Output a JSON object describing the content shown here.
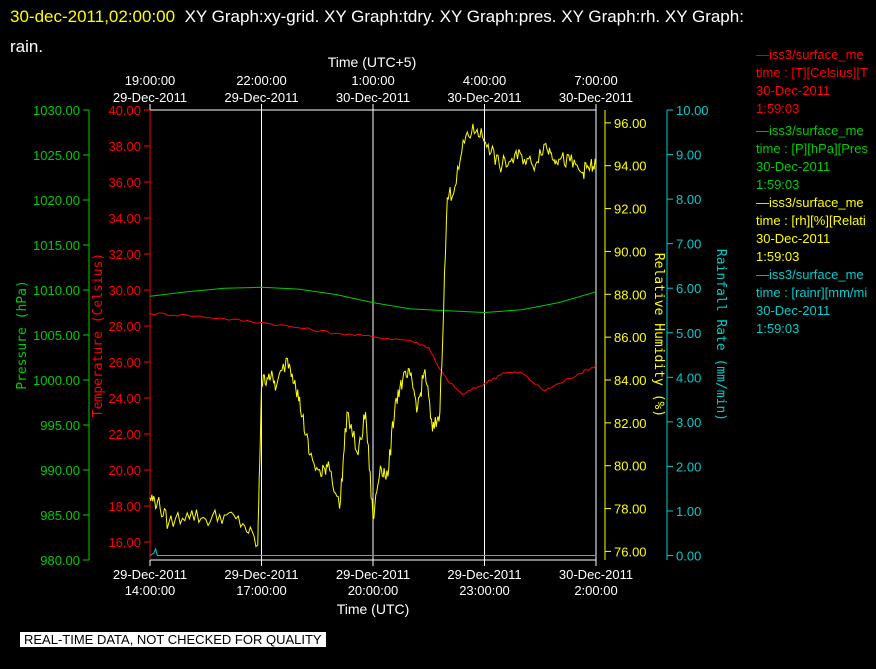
{
  "header": {
    "timestamp": "30-dec-2011,02:00:00",
    "titles": "XY Graph:xy-grid.  XY Graph:tdry.  XY Graph:pres.  XY Graph:rh.  XY Graph:",
    "titles_cont": "rain."
  },
  "qc_banner": "REAL-TIME DATA, NOT CHECKED FOR QUALITY",
  "colors": {
    "pressure": "#00cc00",
    "temperature": "#ff0000",
    "humidity": "#ffff00",
    "rain": "#00cccc",
    "grid": "#ffffff",
    "background": "#000000"
  },
  "legend": [
    {
      "line1": "—iss3/surface_me",
      "line2": "time : [T][Celsius][T",
      "line3": "30-Dec-2011",
      "line4": "1:59:03",
      "color": "#ff0000"
    },
    {
      "line1": "—iss3/surface_me",
      "line2": "time : [P][hPa][Pres",
      "line3": "30-Dec-2011",
      "line4": "1:59:03",
      "color": "#00cc00"
    },
    {
      "line1": "—iss3/surface_me",
      "line2": "time : [rh][%][Relati",
      "line3": "30-Dec-2011",
      "line4": "1:59:03",
      "color": "#ffff00"
    },
    {
      "line1": "—iss3/surface_me",
      "line2": "time : [rainr][mm/mi",
      "line3": "30-Dec-2011",
      "line4": "1:59:03",
      "color": "#00cccc"
    }
  ],
  "chart_data": {
    "type": "line",
    "xlabel_bottom": "Time (UTC)",
    "xlabel_top": "Time (UTC+5)",
    "x_ticks_bottom": [
      {
        "l1": "29-Dec-2011",
        "l2": "14:00:00"
      },
      {
        "l1": "29-Dec-2011",
        "l2": "17:00:00"
      },
      {
        "l1": "29-Dec-2011",
        "l2": "20:00:00"
      },
      {
        "l1": "29-Dec-2011",
        "l2": "23:00:00"
      },
      {
        "l1": "30-Dec-2011",
        "l2": "2:00:00"
      }
    ],
    "x_ticks_top": [
      {
        "l1": "19:00:00",
        "l2": "29-Dec-2011"
      },
      {
        "l1": "22:00:00",
        "l2": "29-Dec-2011"
      },
      {
        "l1": "1:00:00",
        "l2": "30-Dec-2011"
      },
      {
        "l1": "4:00:00",
        "l2": "30-Dec-2011"
      },
      {
        "l1": "7:00:00",
        "l2": "30-Dec-2011"
      }
    ],
    "xlim_hours_utc": [
      14,
      26
    ],
    "axes": {
      "pressure": {
        "label": "Pressure (hPa)",
        "ylim": [
          980,
          1030
        ],
        "ticks": [
          "980.00",
          "985.00",
          "990.00",
          "995.00",
          "1000.00",
          "1005.00",
          "1010.00",
          "1015.00",
          "1020.00",
          "1025.00",
          "1030.00"
        ]
      },
      "temperature": {
        "label": "Temperature (Celsius)",
        "ylim": [
          15,
          40
        ],
        "ticks": [
          "16.00",
          "18.00",
          "20.00",
          "22.00",
          "24.00",
          "26.00",
          "28.00",
          "30.00",
          "32.00",
          "34.00",
          "36.00",
          "38.00",
          "40.00"
        ]
      },
      "humidity": {
        "label": "Relative Humidity (%)",
        "ylim": [
          75.6,
          96.6
        ],
        "ticks": [
          "76.00",
          "78.00",
          "80.00",
          "82.00",
          "84.00",
          "86.00",
          "88.00",
          "90.00",
          "92.00",
          "94.00",
          "96.00"
        ]
      },
      "rain": {
        "label": "Rainfall Rate (mm/min)",
        "ylim": [
          -0.1,
          10
        ],
        "ticks": [
          "0.00",
          "1.00",
          "2.00",
          "3.00",
          "4.00",
          "5.00",
          "6.00",
          "7.00",
          "8.00",
          "9.00",
          "10.00"
        ]
      }
    },
    "series": [
      {
        "name": "pressure",
        "axis": "pressure",
        "x": [
          14,
          15,
          16,
          17,
          18,
          19,
          20,
          21,
          22,
          23,
          24,
          25,
          26
        ],
        "y": [
          1009.3,
          1009.8,
          1010.2,
          1010.3,
          1010.1,
          1009.5,
          1008.6,
          1007.9,
          1007.7,
          1007.5,
          1007.8,
          1008.6,
          1009.8
        ]
      },
      {
        "name": "temperature",
        "axis": "temperature",
        "x": [
          14,
          15,
          16,
          17,
          18,
          19,
          20,
          21,
          21.5,
          21.8,
          22,
          22.4,
          23,
          23.5,
          24,
          24.6,
          25,
          25.5,
          26
        ],
        "y": [
          28.7,
          28.6,
          28.4,
          28.2,
          27.9,
          27.6,
          27.4,
          27.2,
          26.8,
          25.6,
          25.0,
          24.2,
          24.8,
          25.4,
          25.4,
          24.4,
          24.8,
          25.3,
          25.8
        ],
        "noise": 0.08
      },
      {
        "name": "humidity",
        "axis": "humidity",
        "x": [
          14,
          14.2,
          14.5,
          15,
          15.5,
          16,
          16.5,
          16.9,
          17.0,
          17.2,
          17.4,
          17.7,
          17.9,
          18.1,
          18.3,
          18.6,
          18.8,
          19.1,
          19.3,
          19.6,
          19.8,
          20,
          20.2,
          20.4,
          20.6,
          20.8,
          21,
          21.2,
          21.4,
          21.6,
          21.8,
          22.0,
          22.2,
          22.5,
          22.8,
          23.1,
          23.4,
          23.7,
          24.0,
          24.3,
          24.6,
          24.8,
          25.0,
          25.3,
          25.6,
          25.8,
          26
        ],
        "y": [
          78.5,
          78.3,
          77.3,
          77.8,
          77.5,
          77.7,
          77.3,
          76.3,
          83.8,
          84.3,
          83.7,
          85.0,
          84.0,
          82.3,
          80.5,
          79.5,
          80.2,
          78.0,
          82.5,
          80.5,
          82.5,
          77.5,
          80.0,
          79.5,
          83.0,
          84.0,
          84.2,
          82.7,
          84.5,
          81.6,
          82.5,
          92.5,
          93.0,
          95.4,
          95.7,
          95.0,
          94.0,
          94.2,
          94.5,
          94.0,
          95.0,
          94.6,
          94.3,
          94.2,
          93.7,
          93.9,
          94.0
        ],
        "noise": 0.4
      },
      {
        "name": "rain",
        "axis": "rain",
        "x": [
          14,
          14.1,
          14.15,
          14.2,
          15,
          20,
          26
        ],
        "y": [
          0,
          0.05,
          0.15,
          0,
          0,
          0,
          0
        ]
      }
    ]
  }
}
